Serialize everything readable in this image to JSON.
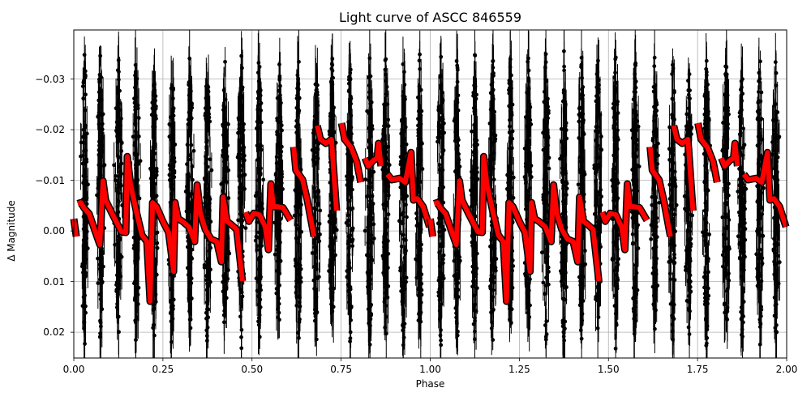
{
  "chart_data": {
    "type": "scatter",
    "title": "Light curve of ASCC 846559",
    "xlabel": "Phase",
    "ylabel": "Δ Magnitude",
    "xlim": [
      0.0,
      2.0
    ],
    "ylim": [
      0.0251,
      -0.0397
    ],
    "y_inverted": true,
    "grid": true,
    "legend": null,
    "x_ticks": [
      {
        "value": 0.0,
        "label": "0.00"
      },
      {
        "value": 0.25,
        "label": "0.25"
      },
      {
        "value": 0.5,
        "label": "0.50"
      },
      {
        "value": 0.75,
        "label": "0.75"
      },
      {
        "value": 1.0,
        "label": "1.00"
      },
      {
        "value": 1.25,
        "label": "1.25"
      },
      {
        "value": 1.5,
        "label": "1.50"
      },
      {
        "value": 1.75,
        "label": "1.75"
      },
      {
        "value": 2.0,
        "label": "2.00"
      }
    ],
    "y_ticks": [
      {
        "value": -0.03,
        "label": "−0.03"
      },
      {
        "value": -0.02,
        "label": "−0.02"
      },
      {
        "value": -0.01,
        "label": "−0.01"
      },
      {
        "value": 0.0,
        "label": "0.00"
      },
      {
        "value": 0.01,
        "label": "0.01"
      },
      {
        "value": 0.02,
        "label": "0.02"
      }
    ],
    "series": [
      {
        "name": "observations",
        "style": "errorbar",
        "color": "#000000",
        "description": "Dense black points with error bars forming ~22 vertical clusters per plotted range (~11 per phase unit), spanning roughly -0.04 to +0.025 mag",
        "cluster_centers": [
          0.03,
          0.075,
          0.125,
          0.175,
          0.225,
          0.275,
          0.325,
          0.375,
          0.425,
          0.47,
          0.52,
          0.575,
          0.63,
          0.68,
          0.725,
          0.775,
          0.83,
          0.875,
          0.925,
          0.97
        ],
        "cluster_half_width": 0.014,
        "cluster_extent": [
          -0.039,
          0.025
        ]
      },
      {
        "name": "model",
        "style": "line",
        "color": "#ff0000",
        "edge_color": "#000000",
        "period_repeat": 1.0,
        "segments": [
          [
            [
              0.0,
              -0.0024
            ],
            [
              0.007,
              0.0011
            ]
          ],
          [
            [
              0.011,
              -0.0054
            ],
            [
              0.02,
              -0.0056
            ],
            [
              0.029,
              -0.0045
            ],
            [
              0.043,
              -0.0034
            ],
            [
              0.061,
              0.0003
            ],
            [
              0.073,
              0.0027
            ],
            [
              0.082,
              -0.0099
            ],
            [
              0.089,
              -0.0061
            ],
            [
              0.107,
              -0.0035
            ],
            [
              0.123,
              -0.0013
            ],
            [
              0.134,
              0.0002
            ],
            [
              0.146,
              0.0003
            ],
            [
              0.15,
              -0.0147
            ],
            [
              0.159,
              -0.0093
            ],
            [
              0.175,
              -0.004
            ],
            [
              0.191,
              0.0008
            ],
            [
              0.205,
              0.0021
            ],
            [
              0.214,
              0.0139
            ],
            [
              0.221,
              -0.0056
            ],
            [
              0.232,
              -0.0048
            ],
            [
              0.25,
              -0.0019
            ],
            [
              0.266,
              0.0003
            ],
            [
              0.28,
              0.008
            ],
            [
              0.284,
              -0.0056
            ],
            [
              0.293,
              -0.0024
            ],
            [
              0.305,
              -0.0019
            ],
            [
              0.323,
              -0.0008
            ],
            [
              0.339,
              0.0021
            ],
            [
              0.346,
              -0.0091
            ],
            [
              0.355,
              -0.0035
            ],
            [
              0.369,
              -0.0003
            ],
            [
              0.385,
              0.0016
            ],
            [
              0.401,
              0.0021
            ],
            [
              0.414,
              0.0061
            ],
            [
              0.419,
              -0.0067
            ],
            [
              0.43,
              -0.0019
            ],
            [
              0.441,
              -0.0013
            ],
            [
              0.457,
              -0.0003
            ],
            [
              0.473,
              0.0099
            ]
          ],
          [
            [
              0.482,
              -0.0037
            ],
            [
              0.491,
              -0.0019
            ],
            [
              0.505,
              -0.0035
            ],
            [
              0.521,
              -0.0032
            ],
            [
              0.537,
              -0.0008
            ],
            [
              0.546,
              0.0037
            ],
            [
              0.553,
              -0.0093
            ],
            [
              0.56,
              -0.0048
            ],
            [
              0.571,
              -0.0048
            ],
            [
              0.587,
              -0.0046
            ],
            [
              0.608,
              -0.0021
            ]
          ],
          [
            [
              0.617,
              -0.0166
            ],
            [
              0.623,
              -0.012
            ],
            [
              0.642,
              -0.0101
            ],
            [
              0.655,
              -0.0061
            ],
            [
              0.674,
              0.0011
            ]
          ],
          [
            [
              0.683,
              -0.0208
            ],
            [
              0.692,
              -0.0181
            ],
            [
              0.707,
              -0.0173
            ],
            [
              0.723,
              -0.0181
            ],
            [
              0.737,
              -0.004
            ]
          ],
          [
            [
              0.751,
              -0.0213
            ],
            [
              0.76,
              -0.0181
            ],
            [
              0.778,
              -0.0165
            ],
            [
              0.794,
              -0.0136
            ],
            [
              0.805,
              -0.0096
            ]
          ],
          [
            [
              0.817,
              -0.0144
            ],
            [
              0.826,
              -0.0128
            ],
            [
              0.84,
              -0.0139
            ],
            [
              0.851,
              -0.0144
            ],
            [
              0.855,
              -0.0173
            ],
            [
              0.862,
              -0.0128
            ]
          ],
          [
            [
              0.88,
              -0.0112
            ],
            [
              0.892,
              -0.0101
            ],
            [
              0.914,
              -0.0104
            ],
            [
              0.93,
              -0.0096
            ],
            [
              0.946,
              -0.0155
            ],
            [
              0.953,
              -0.0061
            ],
            [
              0.964,
              -0.0064
            ],
            [
              0.98,
              -0.0048
            ],
            [
              0.998,
              -0.0008
            ]
          ]
        ]
      }
    ]
  }
}
